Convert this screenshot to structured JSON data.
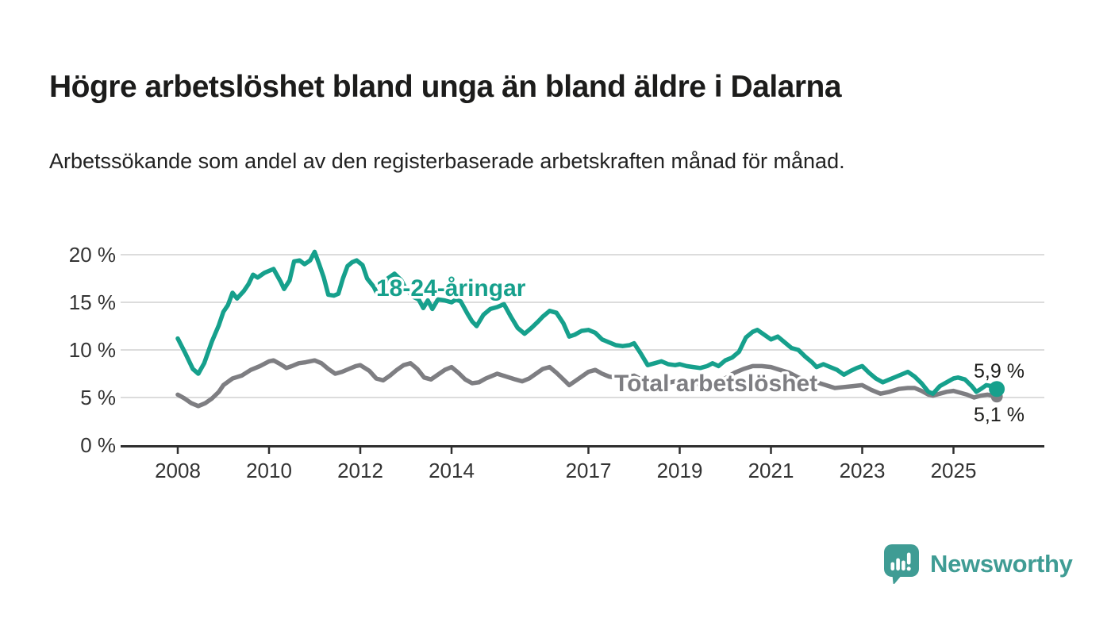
{
  "header": {
    "title": "Högre arbetslöshet bland unga än bland äldre i Dalarna",
    "subtitle": "Arbetssökande som andel av den registerbaserade arbetskraften månad för månad."
  },
  "footer": {
    "brand": "Newsworthy"
  },
  "colors": {
    "youth_line": "#16a08c",
    "total_line": "#7e7e82",
    "grid": "#dcdcdc",
    "axis": "#2f2f2f",
    "text": "#1d1d1b",
    "brand_teal": "#3f9c94"
  },
  "chart_data": {
    "type": "line",
    "title": "Högre arbetslöshet bland unga än bland äldre i Dalarna",
    "xlabel": "",
    "ylabel": "",
    "grid": "horizontal",
    "legend_position": "inline-labels",
    "x_axis": {
      "range": [
        2007.7,
        2026.3
      ],
      "ticks": [
        {
          "v": 2008,
          "label": "2008"
        },
        {
          "v": 2010,
          "label": "2010"
        },
        {
          "v": 2012,
          "label": "2012"
        },
        {
          "v": 2014,
          "label": "2014"
        },
        {
          "v": 2017,
          "label": "2017"
        },
        {
          "v": 2019,
          "label": "2019"
        },
        {
          "v": 2021,
          "label": "2021"
        },
        {
          "v": 2023,
          "label": "2023"
        },
        {
          "v": 2025,
          "label": "2025"
        }
      ]
    },
    "y_axis": {
      "range": [
        0,
        21
      ],
      "ticks": [
        {
          "v": 0,
          "label": "0 %"
        },
        {
          "v": 5,
          "label": "5 %"
        },
        {
          "v": 10,
          "label": "10 %"
        },
        {
          "v": 15,
          "label": "15 %"
        },
        {
          "v": 20,
          "label": "20 %"
        }
      ]
    },
    "series": [
      {
        "id": "total",
        "name": "Total arbetslöshet",
        "color": "#7e7e82",
        "end_label": "5,1 %",
        "last_value": 5.1,
        "points": [
          [
            2008.0,
            5.3
          ],
          [
            2008.15,
            4.9
          ],
          [
            2008.3,
            4.4
          ],
          [
            2008.45,
            4.1
          ],
          [
            2008.6,
            4.4
          ],
          [
            2008.75,
            4.9
          ],
          [
            2008.9,
            5.6
          ],
          [
            2009.0,
            6.3
          ],
          [
            2009.2,
            7.0
          ],
          [
            2009.4,
            7.3
          ],
          [
            2009.6,
            7.9
          ],
          [
            2009.8,
            8.3
          ],
          [
            2010.0,
            8.8
          ],
          [
            2010.1,
            8.9
          ],
          [
            2010.25,
            8.5
          ],
          [
            2010.38,
            8.1
          ],
          [
            2010.5,
            8.3
          ],
          [
            2010.65,
            8.6
          ],
          [
            2010.8,
            8.7
          ],
          [
            2011.0,
            8.9
          ],
          [
            2011.15,
            8.6
          ],
          [
            2011.3,
            8.0
          ],
          [
            2011.45,
            7.5
          ],
          [
            2011.6,
            7.7
          ],
          [
            2011.75,
            8.0
          ],
          [
            2011.9,
            8.3
          ],
          [
            2012.0,
            8.4
          ],
          [
            2012.2,
            7.8
          ],
          [
            2012.35,
            7.0
          ],
          [
            2012.5,
            6.8
          ],
          [
            2012.65,
            7.3
          ],
          [
            2012.8,
            7.9
          ],
          [
            2012.95,
            8.4
          ],
          [
            2013.1,
            8.6
          ],
          [
            2013.25,
            8.0
          ],
          [
            2013.4,
            7.1
          ],
          [
            2013.55,
            6.9
          ],
          [
            2013.7,
            7.4
          ],
          [
            2013.85,
            7.9
          ],
          [
            2014.0,
            8.2
          ],
          [
            2014.15,
            7.6
          ],
          [
            2014.3,
            6.9
          ],
          [
            2014.45,
            6.5
          ],
          [
            2014.6,
            6.6
          ],
          [
            2014.75,
            7.0
          ],
          [
            2014.9,
            7.3
          ],
          [
            2015.0,
            7.5
          ],
          [
            2015.2,
            7.2
          ],
          [
            2015.4,
            6.9
          ],
          [
            2015.55,
            6.7
          ],
          [
            2015.7,
            7.0
          ],
          [
            2015.85,
            7.5
          ],
          [
            2016.0,
            8.0
          ],
          [
            2016.15,
            8.2
          ],
          [
            2016.3,
            7.6
          ],
          [
            2016.45,
            6.9
          ],
          [
            2016.58,
            6.3
          ],
          [
            2016.7,
            6.7
          ],
          [
            2016.85,
            7.2
          ],
          [
            2017.0,
            7.7
          ],
          [
            2017.15,
            7.9
          ],
          [
            2017.3,
            7.5
          ],
          [
            2017.45,
            7.2
          ],
          [
            2017.6,
            7.1
          ],
          [
            2017.75,
            7.1
          ],
          [
            2017.9,
            7.2
          ],
          [
            2018.0,
            7.3
          ],
          [
            2018.2,
            6.8
          ],
          [
            2018.4,
            6.4
          ],
          [
            2018.6,
            6.3
          ],
          [
            2018.8,
            6.6
          ],
          [
            2019.0,
            6.8
          ],
          [
            2019.2,
            6.5
          ],
          [
            2019.4,
            6.4
          ],
          [
            2019.6,
            6.5
          ],
          [
            2019.8,
            6.7
          ],
          [
            2020.0,
            7.0
          ],
          [
            2020.2,
            7.6
          ],
          [
            2020.4,
            8.0
          ],
          [
            2020.6,
            8.3
          ],
          [
            2020.8,
            8.3
          ],
          [
            2021.0,
            8.2
          ],
          [
            2021.2,
            7.9
          ],
          [
            2021.4,
            7.6
          ],
          [
            2021.6,
            7.1
          ],
          [
            2021.8,
            6.8
          ],
          [
            2022.0,
            6.6
          ],
          [
            2022.2,
            6.3
          ],
          [
            2022.4,
            6.0
          ],
          [
            2022.6,
            6.1
          ],
          [
            2022.8,
            6.2
          ],
          [
            2023.0,
            6.3
          ],
          [
            2023.2,
            5.8
          ],
          [
            2023.4,
            5.4
          ],
          [
            2023.6,
            5.6
          ],
          [
            2023.8,
            5.9
          ],
          [
            2024.0,
            6.0
          ],
          [
            2024.15,
            6.0
          ],
          [
            2024.3,
            5.7
          ],
          [
            2024.45,
            5.3
          ],
          [
            2024.55,
            5.2
          ],
          [
            2024.7,
            5.4
          ],
          [
            2024.85,
            5.6
          ],
          [
            2025.0,
            5.7
          ],
          [
            2025.15,
            5.5
          ],
          [
            2025.3,
            5.3
          ],
          [
            2025.45,
            5.0
          ],
          [
            2025.6,
            5.2
          ],
          [
            2025.75,
            5.3
          ],
          [
            2025.85,
            5.2
          ],
          [
            2025.95,
            5.1
          ]
        ]
      },
      {
        "id": "youth",
        "name": "18-24-åringar",
        "color": "#16a08c",
        "end_label": "5,9 %",
        "last_value": 5.9,
        "points": [
          [
            2008.0,
            11.2
          ],
          [
            2008.17,
            9.6
          ],
          [
            2008.33,
            8.0
          ],
          [
            2008.45,
            7.5
          ],
          [
            2008.58,
            8.6
          ],
          [
            2008.75,
            10.9
          ],
          [
            2008.9,
            12.6
          ],
          [
            2009.0,
            14.0
          ],
          [
            2009.1,
            14.7
          ],
          [
            2009.2,
            16.0
          ],
          [
            2009.3,
            15.4
          ],
          [
            2009.45,
            16.2
          ],
          [
            2009.55,
            16.9
          ],
          [
            2009.65,
            17.9
          ],
          [
            2009.75,
            17.6
          ],
          [
            2009.9,
            18.1
          ],
          [
            2010.0,
            18.3
          ],
          [
            2010.1,
            18.5
          ],
          [
            2010.25,
            17.2
          ],
          [
            2010.33,
            16.4
          ],
          [
            2010.45,
            17.3
          ],
          [
            2010.55,
            19.3
          ],
          [
            2010.67,
            19.4
          ],
          [
            2010.78,
            19.0
          ],
          [
            2010.9,
            19.4
          ],
          [
            2011.0,
            20.3
          ],
          [
            2011.1,
            19.0
          ],
          [
            2011.2,
            17.6
          ],
          [
            2011.3,
            15.8
          ],
          [
            2011.42,
            15.7
          ],
          [
            2011.52,
            15.9
          ],
          [
            2011.62,
            17.5
          ],
          [
            2011.72,
            18.8
          ],
          [
            2011.82,
            19.2
          ],
          [
            2011.92,
            19.4
          ],
          [
            2012.05,
            18.9
          ],
          [
            2012.15,
            17.5
          ],
          [
            2012.3,
            16.6
          ],
          [
            2012.4,
            15.6
          ],
          [
            2012.5,
            16.3
          ],
          [
            2012.6,
            17.5
          ],
          [
            2012.75,
            18.0
          ],
          [
            2012.9,
            17.3
          ],
          [
            2013.0,
            16.4
          ],
          [
            2013.15,
            15.6
          ],
          [
            2013.28,
            15.3
          ],
          [
            2013.38,
            14.4
          ],
          [
            2013.48,
            15.2
          ],
          [
            2013.58,
            14.3
          ],
          [
            2013.7,
            15.3
          ],
          [
            2013.85,
            15.2
          ],
          [
            2014.0,
            15.0
          ],
          [
            2014.1,
            15.3
          ],
          [
            2014.2,
            15.1
          ],
          [
            2014.35,
            13.8
          ],
          [
            2014.45,
            13.0
          ],
          [
            2014.55,
            12.5
          ],
          [
            2014.7,
            13.7
          ],
          [
            2014.85,
            14.3
          ],
          [
            2015.0,
            14.5
          ],
          [
            2015.15,
            14.8
          ],
          [
            2015.3,
            13.5
          ],
          [
            2015.45,
            12.3
          ],
          [
            2015.6,
            11.7
          ],
          [
            2015.75,
            12.3
          ],
          [
            2015.9,
            13.0
          ],
          [
            2016.0,
            13.5
          ],
          [
            2016.15,
            14.1
          ],
          [
            2016.3,
            13.9
          ],
          [
            2016.45,
            12.8
          ],
          [
            2016.58,
            11.4
          ],
          [
            2016.7,
            11.6
          ],
          [
            2016.85,
            12.0
          ],
          [
            2017.0,
            12.1
          ],
          [
            2017.15,
            11.8
          ],
          [
            2017.3,
            11.1
          ],
          [
            2017.45,
            10.8
          ],
          [
            2017.6,
            10.5
          ],
          [
            2017.75,
            10.4
          ],
          [
            2017.9,
            10.5
          ],
          [
            2018.0,
            10.7
          ],
          [
            2018.15,
            9.6
          ],
          [
            2018.3,
            8.4
          ],
          [
            2018.45,
            8.6
          ],
          [
            2018.6,
            8.8
          ],
          [
            2018.75,
            8.5
          ],
          [
            2018.9,
            8.4
          ],
          [
            2019.0,
            8.5
          ],
          [
            2019.15,
            8.3
          ],
          [
            2019.3,
            8.2
          ],
          [
            2019.45,
            8.1
          ],
          [
            2019.6,
            8.3
          ],
          [
            2019.72,
            8.6
          ],
          [
            2019.85,
            8.3
          ],
          [
            2020.0,
            8.9
          ],
          [
            2020.15,
            9.2
          ],
          [
            2020.3,
            9.8
          ],
          [
            2020.45,
            11.3
          ],
          [
            2020.6,
            11.9
          ],
          [
            2020.7,
            12.1
          ],
          [
            2020.85,
            11.6
          ],
          [
            2021.0,
            11.1
          ],
          [
            2021.15,
            11.4
          ],
          [
            2021.3,
            10.8
          ],
          [
            2021.45,
            10.2
          ],
          [
            2021.6,
            10.0
          ],
          [
            2021.75,
            9.3
          ],
          [
            2021.9,
            8.7
          ],
          [
            2022.0,
            8.2
          ],
          [
            2022.15,
            8.5
          ],
          [
            2022.3,
            8.2
          ],
          [
            2022.45,
            7.9
          ],
          [
            2022.6,
            7.4
          ],
          [
            2022.75,
            7.8
          ],
          [
            2022.88,
            8.1
          ],
          [
            2023.0,
            8.3
          ],
          [
            2023.15,
            7.6
          ],
          [
            2023.3,
            7.0
          ],
          [
            2023.45,
            6.6
          ],
          [
            2023.6,
            6.9
          ],
          [
            2023.75,
            7.2
          ],
          [
            2023.9,
            7.5
          ],
          [
            2024.0,
            7.7
          ],
          [
            2024.15,
            7.2
          ],
          [
            2024.3,
            6.5
          ],
          [
            2024.45,
            5.6
          ],
          [
            2024.55,
            5.4
          ],
          [
            2024.7,
            6.2
          ],
          [
            2024.85,
            6.6
          ],
          [
            2025.0,
            7.0
          ],
          [
            2025.1,
            7.1
          ],
          [
            2025.25,
            6.9
          ],
          [
            2025.4,
            6.2
          ],
          [
            2025.5,
            5.6
          ],
          [
            2025.6,
            5.9
          ],
          [
            2025.72,
            6.3
          ],
          [
            2025.83,
            6.2
          ],
          [
            2025.95,
            5.9
          ]
        ]
      }
    ]
  }
}
